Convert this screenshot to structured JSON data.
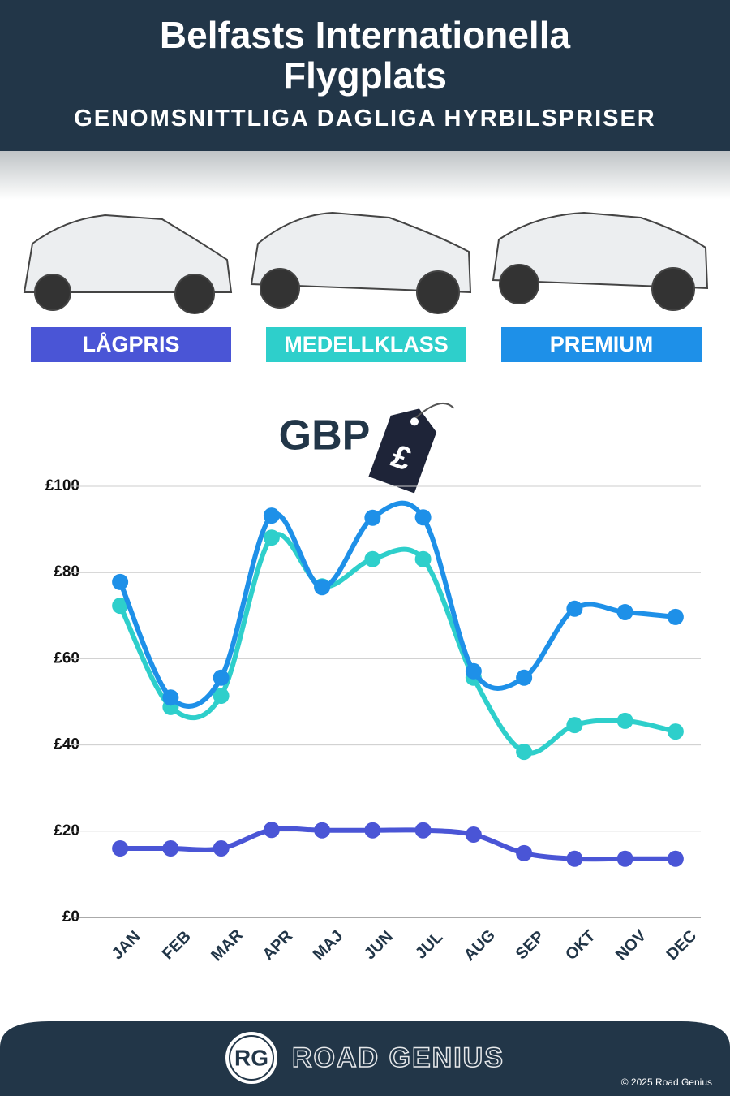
{
  "chart_data": {
    "type": "line",
    "title": "Belfasts Internationella Flygplats",
    "subtitle": "GENOMSNITTLIGA DAGLIGA HYRBILSPRISER",
    "currency": "GBP",
    "currency_symbol": "£",
    "categories": [
      "JAN",
      "FEB",
      "MAR",
      "APR",
      "MAJ",
      "JUN",
      "JUL",
      "AUG",
      "SEP",
      "OKT",
      "NOV",
      "DEC"
    ],
    "series": [
      {
        "name": "LÅGPRIS",
        "color": "#4a55d6",
        "values": [
          16.0,
          16.0,
          16.0,
          20.3,
          20.2,
          20.2,
          20.2,
          19.2,
          14.9,
          13.6,
          13.6,
          13.6
        ]
      },
      {
        "name": "MEDELLKLASS",
        "color": "#2ecfcb",
        "values": [
          72.3,
          48.8,
          51.4,
          88.1,
          76.8,
          83.1,
          83.1,
          55.6,
          38.4,
          44.6,
          45.6,
          43.1
        ]
      },
      {
        "name": "PREMIUM",
        "color": "#1e90e8",
        "values": [
          77.8,
          51.0,
          55.6,
          93.2,
          76.6,
          92.7,
          92.8,
          57.1,
          55.6,
          71.6,
          70.8,
          69.7
        ]
      }
    ],
    "ylim": [
      0,
      100
    ],
    "yticks": [
      {
        "value": 0,
        "label": "£0"
      },
      {
        "value": 20,
        "label": "£20"
      },
      {
        "value": 40,
        "label": "£40"
      },
      {
        "value": 60,
        "label": "£60"
      },
      {
        "value": 80,
        "label": "£80"
      },
      {
        "value": 100,
        "label": "£100"
      }
    ],
    "grid": true
  },
  "footer": {
    "logo": "RG",
    "brand": "ROAD GENIUS",
    "copyright": "© 2025 Road Genius"
  }
}
